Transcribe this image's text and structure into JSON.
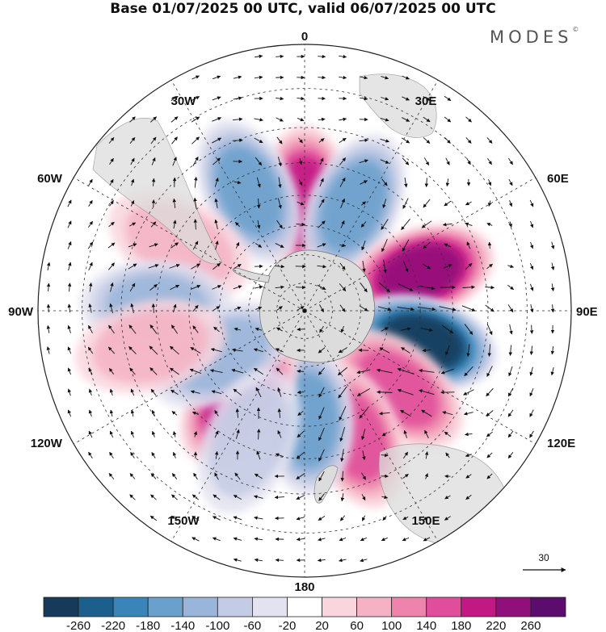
{
  "title": "Base 01/07/2025 00 UTC, valid 06/07/2025 00 UTC",
  "brand": {
    "text": "MODES",
    "mark": "©"
  },
  "map": {
    "projection": "south-polar-stereographic",
    "longitude_labels": [
      {
        "text": "0",
        "lon": 0
      },
      {
        "text": "30E",
        "lon": 30
      },
      {
        "text": "60E",
        "lon": 60
      },
      {
        "text": "90E",
        "lon": 90
      },
      {
        "text": "120E",
        "lon": 120
      },
      {
        "text": "150E",
        "lon": 150
      },
      {
        "text": "180",
        "lon": 180
      },
      {
        "text": "150W",
        "lon": -150
      },
      {
        "text": "120W",
        "lon": -120
      },
      {
        "text": "90W",
        "lon": -90
      },
      {
        "text": "60W",
        "lon": -60
      },
      {
        "text": "30W",
        "lon": -30
      }
    ],
    "anomaly_centers": [
      {
        "sign": "positive",
        "value": 200,
        "lon": 0,
        "lat": -52
      },
      {
        "sign": "negative",
        "value": -140,
        "lon": -25,
        "lat": -45
      },
      {
        "sign": "negative",
        "value": -140,
        "lon": 25,
        "lat": -50
      },
      {
        "sign": "positive",
        "value": 80,
        "lon": -62,
        "lat": -42
      },
      {
        "sign": "negative",
        "value": -120,
        "lon": -88,
        "lat": -40
      },
      {
        "sign": "positive",
        "value": 220,
        "lon": 72,
        "lat": -48
      },
      {
        "sign": "negative",
        "value": -260,
        "lon": 105,
        "lat": -48
      },
      {
        "sign": "positive",
        "value": 140,
        "lon": 130,
        "lat": -48
      },
      {
        "sign": "positive",
        "value": 140,
        "lon": 158,
        "lat": -44
      },
      {
        "sign": "negative",
        "value": -140,
        "lon": 178,
        "lat": -52
      },
      {
        "sign": "positive",
        "value": 180,
        "lon": -143,
        "lat": -52
      },
      {
        "sign": "negative",
        "value": -120,
        "lon": -118,
        "lat": -57
      },
      {
        "sign": "positive",
        "value": 80,
        "lon": -103,
        "lat": -37
      },
      {
        "sign": "negative",
        "value": -60,
        "lon": -157,
        "lat": -42
      }
    ]
  },
  "vector_key": {
    "value": "30"
  },
  "colorbar": {
    "labels": [
      "-260",
      "-220",
      "-180",
      "-140",
      "-100",
      "-60",
      "-20",
      "20",
      "60",
      "100",
      "140",
      "180",
      "220",
      "260"
    ],
    "colors": [
      "#173a5a",
      "#1c5e8c",
      "#3a85b8",
      "#6aa0cc",
      "#9ab5da",
      "#c4cbe4",
      "#e2e2f0",
      "#ffffff",
      "#f9d6de",
      "#f5b2c4",
      "#ee84ab",
      "#e04d9a",
      "#c21884",
      "#900f7a",
      "#5c0c6c"
    ]
  }
}
